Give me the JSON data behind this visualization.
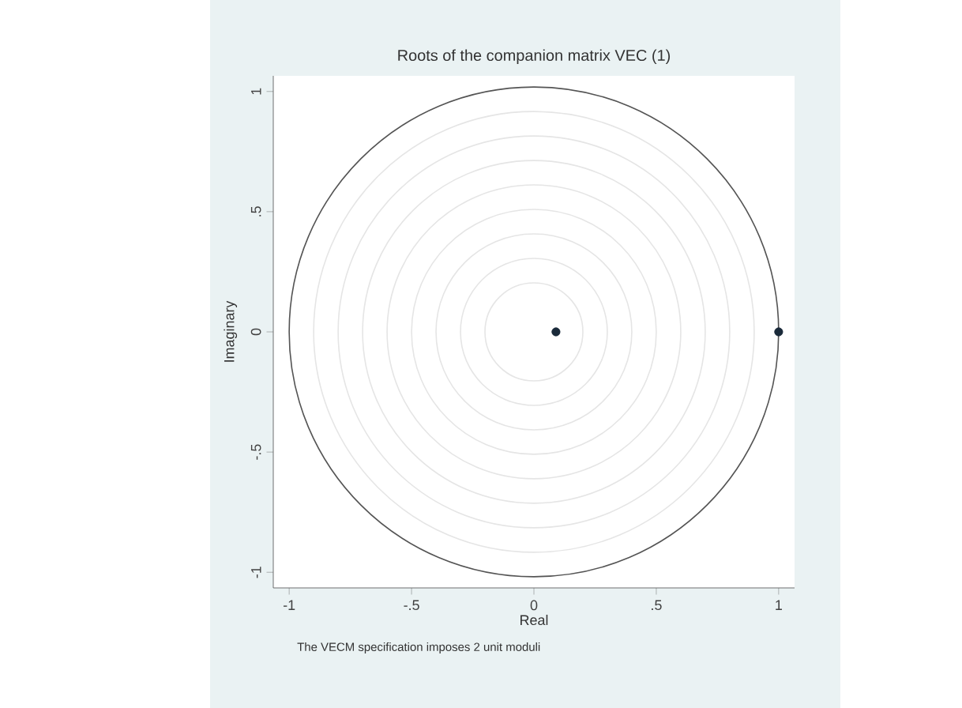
{
  "chart_data": {
    "type": "scatter",
    "title": "Roots of the companion matrix VEC (1)",
    "xlabel": "Real",
    "ylabel": "Imaginary",
    "annotations": [
      "The VECM specification imposes 2 unit moduli"
    ],
    "xlim": [
      -1.065,
      1.065
    ],
    "ylim": [
      -1.065,
      1.065
    ],
    "xticks": [
      {
        "value": -1,
        "label": "-1"
      },
      {
        "value": -0.5,
        "label": "-.5"
      },
      {
        "value": 0,
        "label": "0"
      },
      {
        "value": 0.5,
        "label": ".5"
      },
      {
        "value": 1,
        "label": "1"
      }
    ],
    "yticks": [
      {
        "value": -1,
        "label": "-1"
      },
      {
        "value": -0.5,
        "label": "-.5"
      },
      {
        "value": 0,
        "label": "0"
      },
      {
        "value": 0.5,
        "label": ".5"
      },
      {
        "value": 1,
        "label": "1"
      }
    ],
    "marker": "circle",
    "series": [
      {
        "color": "#1a2a3a",
        "x": [
          0.09,
          1
        ],
        "values": [
          0,
          0
        ]
      }
    ]
  }
}
